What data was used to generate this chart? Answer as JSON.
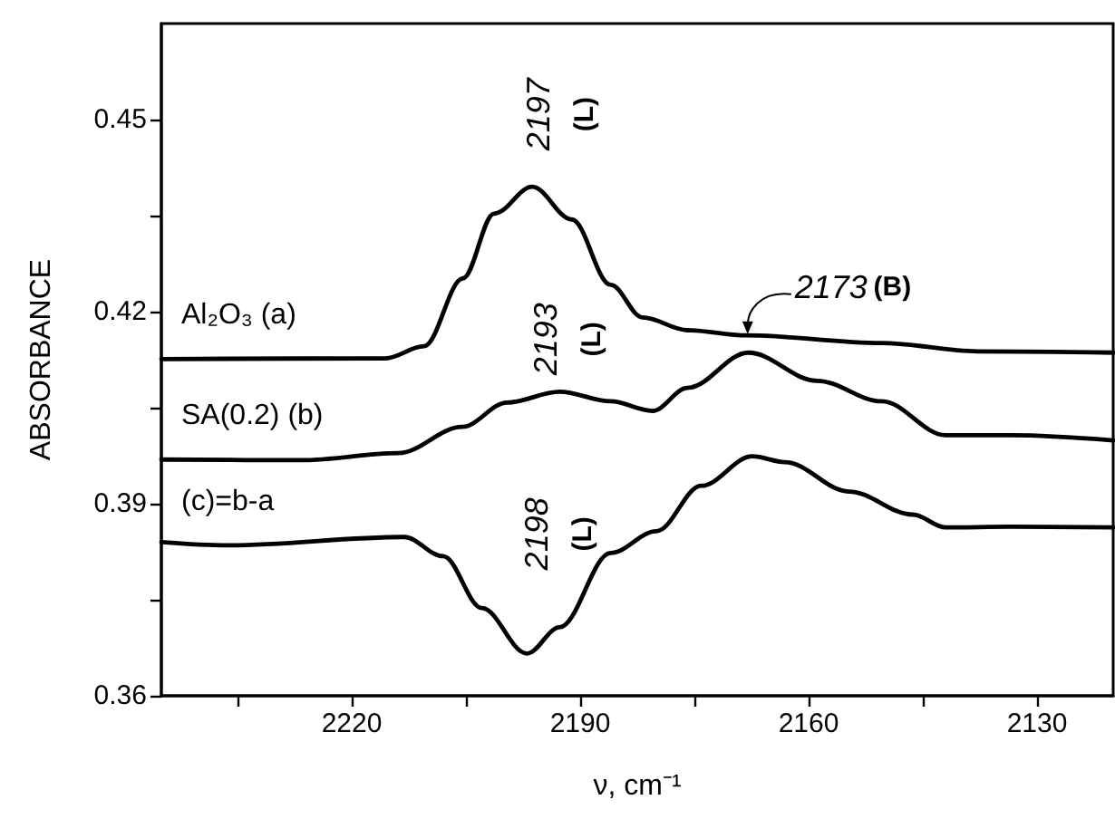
{
  "chart_data": {
    "type": "line",
    "xlabel": "ν, cm⁻¹",
    "ylabel": "ABSORBANCE",
    "xlim": [
      2245,
      2120
    ],
    "ylim": [
      0.36,
      0.465
    ],
    "xticks": [
      {
        "value": 2235,
        "label": null
      },
      2220,
      {
        "value": 2205,
        "label": null
      },
      2190,
      {
        "value": 2175,
        "label": null
      },
      2160,
      {
        "value": 2145,
        "label": null
      },
      2130
    ],
    "yticks": [
      0.36,
      {
        "value": 0.375,
        "label": null
      },
      0.39,
      {
        "value": 0.405,
        "label": null
      },
      0.42,
      {
        "value": 0.435,
        "label": null
      },
      0.45
    ],
    "grid": false,
    "legend": false,
    "marker": "none",
    "line_style": "solid",
    "series": [
      {
        "name": "Al₂O₃ (a)",
        "color": "#000000",
        "x": [
          2245,
          2215.6,
          2210.5,
          2205.4,
          2201.3,
          2196.3,
          2191.1,
          2186,
          2181.8,
          2175.9,
          2168.2,
          2150.4,
          2137.8,
          2120
        ],
        "values": [
          0.4126,
          0.4127,
          0.4146,
          0.4252,
          0.4353,
          0.4395,
          0.4344,
          0.4242,
          0.4191,
          0.4171,
          0.4163,
          0.4151,
          0.4138,
          0.4136
        ]
      },
      {
        "name": "SA(0.2) (b)",
        "color": "#000000",
        "x": [
          2245,
          2226.6,
          2213.9,
          2205.5,
          2199.6,
          2192.7,
          2186,
          2180.5,
          2175.9,
          2167.9,
          2158.9,
          2150.4,
          2142,
          2133.5,
          2120
        ],
        "values": [
          0.3969,
          0.3968,
          0.3979,
          0.402,
          0.4058,
          0.4075,
          0.406,
          0.4045,
          0.4081,
          0.4136,
          0.4092,
          0.406,
          0.4007,
          0.4007,
          0.3999
        ]
      },
      {
        "name": "(c)=b-a",
        "color": "#000000",
        "x": [
          2245,
          2236.4,
          2213.1,
          2208,
          2202.9,
          2197,
          2192.7,
          2186,
          2180,
          2174.1,
          2167.4,
          2163.1,
          2154.7,
          2146.3,
          2142,
          2133.5,
          2120
        ],
        "values": [
          0.384,
          0.3835,
          0.3848,
          0.3818,
          0.3737,
          0.3666,
          0.3707,
          0.3823,
          0.3857,
          0.3928,
          0.3974,
          0.3965,
          0.3919,
          0.3883,
          0.3863,
          0.3864,
          0.3863
        ]
      }
    ],
    "annotations": [
      {
        "text": "2197 (L)",
        "x": 2196.3,
        "y": 0.4395
      },
      {
        "text": "2193 (L)",
        "x": 2192.7,
        "y": 0.4075
      },
      {
        "text": "2198 (L)",
        "x": 2197,
        "y": 0.3666
      },
      {
        "text": "2173 (B)",
        "x": 2168,
        "y": 0.4165
      }
    ]
  }
}
